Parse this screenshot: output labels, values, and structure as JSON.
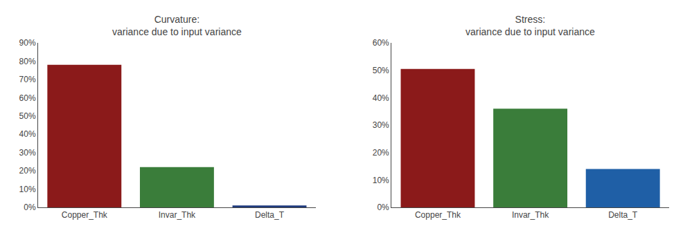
{
  "chart_data": [
    {
      "type": "bar",
      "title": "Curvature:\nvariance due to input variance",
      "categories": [
        "Copper_Thk",
        "Invar_Thk",
        "Delta_T"
      ],
      "values": [
        0.78,
        0.22,
        0.01
      ],
      "colors": [
        "#8b1a1a",
        "#3a7d3a",
        "#1f3a7d"
      ],
      "ylim": [
        0,
        0.9
      ],
      "yticks": [
        {
          "value": 0,
          "label": "0%"
        },
        {
          "value": 0.1,
          "label": "10%"
        },
        {
          "value": 0.2,
          "label": "20%"
        },
        {
          "value": 0.3,
          "label": "30%"
        },
        {
          "value": 0.4,
          "label": "40%"
        },
        {
          "value": 0.5,
          "label": "50%"
        },
        {
          "value": 0.6,
          "label": "60%"
        },
        {
          "value": 0.7,
          "label": "70%"
        },
        {
          "value": 0.8,
          "label": "80%"
        },
        {
          "value": 0.9,
          "label": "90%"
        }
      ],
      "grid": false
    },
    {
      "type": "bar",
      "title": "Stress:\nvariance due to input variance",
      "categories": [
        "Copper_Thk",
        "Invar_Thk",
        "Delta_T"
      ],
      "values": [
        0.505,
        0.36,
        0.14
      ],
      "colors": [
        "#8b1a1a",
        "#3a7d3a",
        "#1f5fa6"
      ],
      "ylim": [
        0,
        0.6
      ],
      "yticks": [
        {
          "value": 0,
          "label": "0%"
        },
        {
          "value": 0.1,
          "label": "10%"
        },
        {
          "value": 0.2,
          "label": "20%"
        },
        {
          "value": 0.3,
          "label": "30%"
        },
        {
          "value": 0.4,
          "label": "40%"
        },
        {
          "value": 0.5,
          "label": "50%"
        },
        {
          "value": 0.6,
          "label": "60%"
        }
      ],
      "grid": false
    }
  ]
}
